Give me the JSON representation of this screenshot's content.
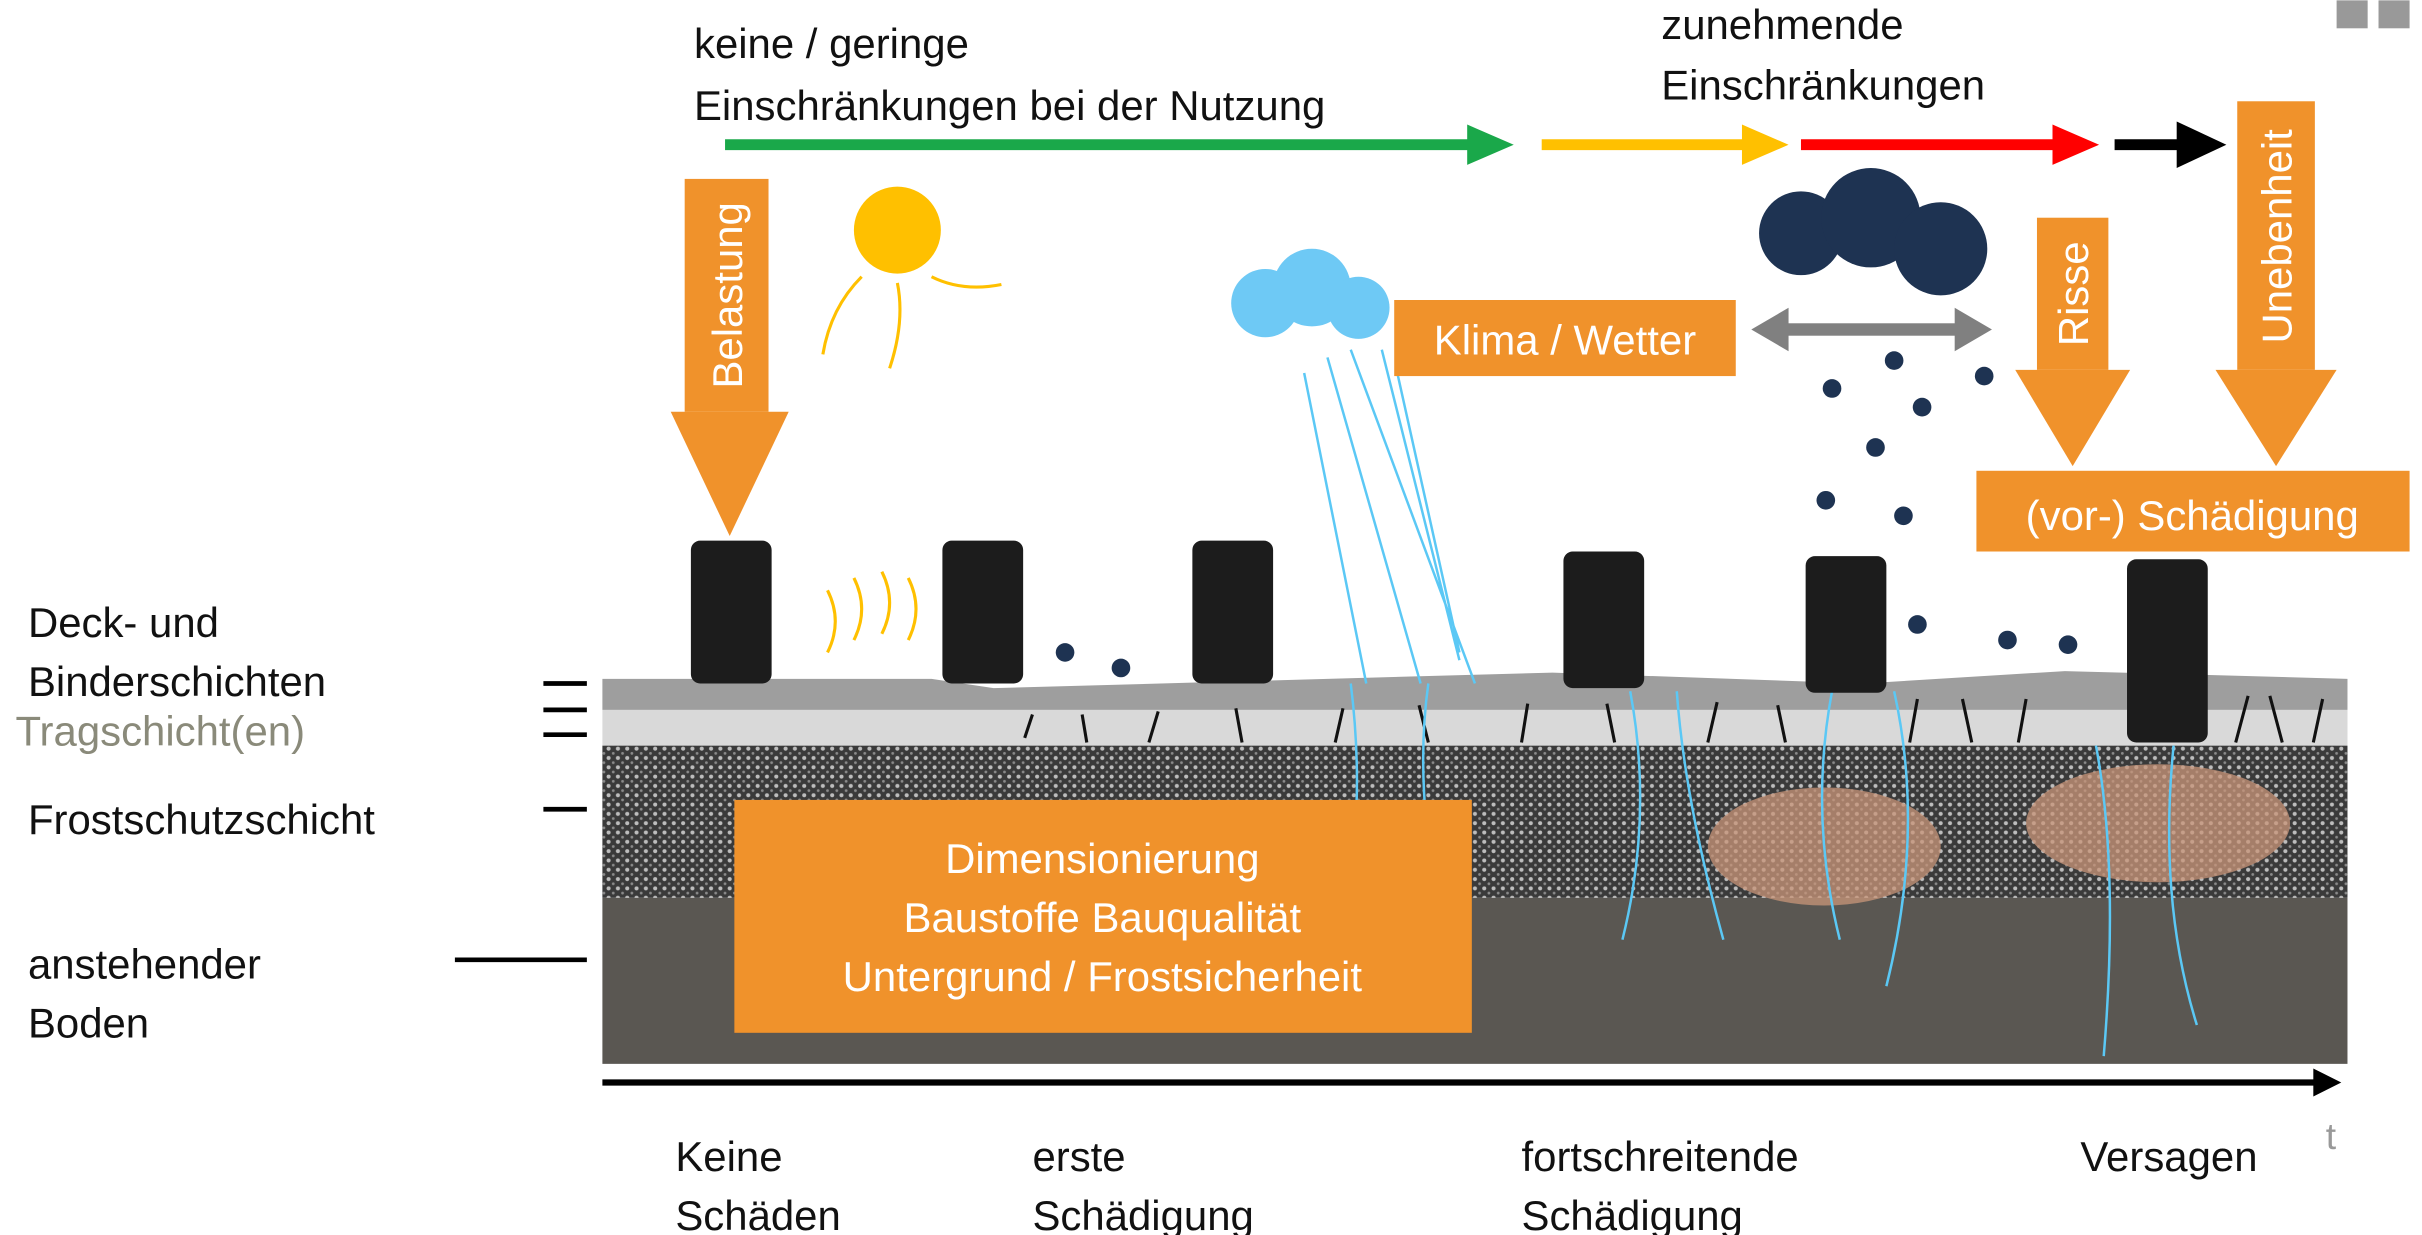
{
  "usage": {
    "low": [
      "keine / geringe",
      "Einschränkungen bei der Nutzung"
    ],
    "increasing": [
      "zunehmende",
      "Einschränkungen"
    ]
  },
  "loads": {
    "load": "Belastung",
    "cracks": "Risse",
    "unevenness": "Unebenheit",
    "climate": "Klima / Wetter",
    "damage": "(vor-) Schädigung"
  },
  "layers": {
    "surface": [
      "Deck- und",
      "Binderschichten"
    ],
    "base": "Tragschicht(en)",
    "frost": "Frostschutzschicht",
    "subgrade": [
      "anstehender",
      "Boden"
    ]
  },
  "design_box": [
    "Dimensionierung",
    "Baustoffe Bauqualität",
    "Untergrund / Frostsicherheit"
  ],
  "time_axis": {
    "label": "t",
    "stages": [
      [
        "Keine",
        "Schäden"
      ],
      [
        "erste",
        "Schädigung"
      ],
      [
        "fortschreitende",
        "Schädigung"
      ],
      [
        "Versagen"
      ]
    ]
  }
}
